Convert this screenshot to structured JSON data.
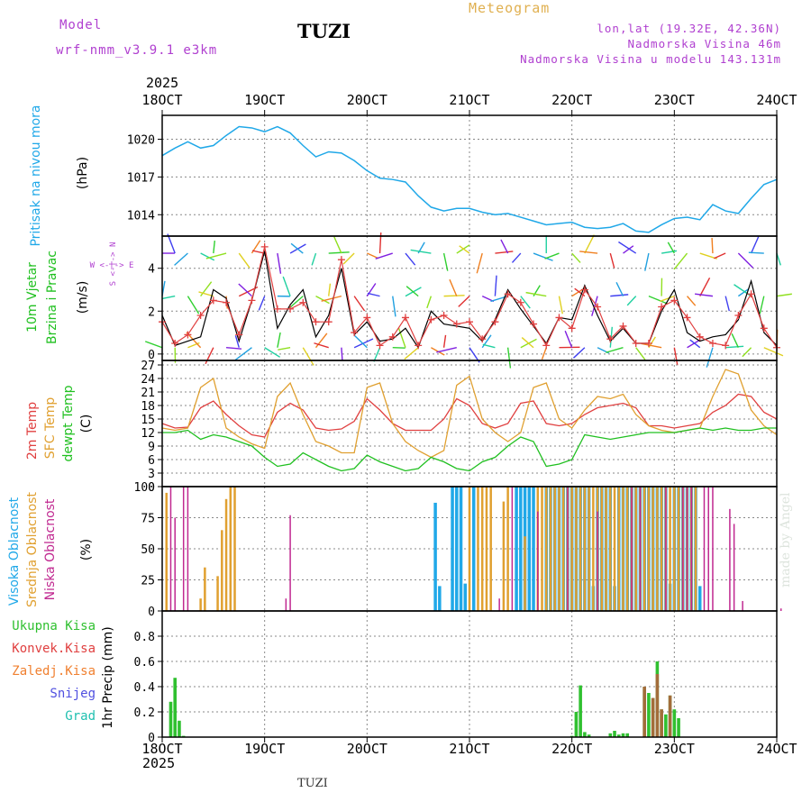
{
  "header": {
    "model_label": "Model",
    "model_version": "wrf-nmm_v3.9.1 e3km",
    "station": "TUZI",
    "title": "Meteogram",
    "lonlat": "lon,lat (19.32E, 42.36N)",
    "altitude": "Nadmorska Visina 46m",
    "model_altitude": "Nadmorska Visina u modelu 143.131m"
  },
  "footer": {
    "year": "2025",
    "station": "TUZI",
    "credit": "made by Angel"
  },
  "colors": {
    "pressure": "#20a8e8",
    "wind_speed": "#000000",
    "gust": "#e04040",
    "t2m": "#e04040",
    "sfc": "#e0a030",
    "dew": "#20c020",
    "high_cloud": "#20a8e8",
    "mid_cloud": "#e0a030",
    "low_cloud": "#c02890",
    "precip": "#30c030",
    "conv": "#e04040",
    "grid": "#888888"
  },
  "chart_data": [
    {
      "type": "line",
      "title": "Pritisak na nivou mora",
      "ylabel": "(hPa)",
      "x_tick_labels": [
        "18OCT",
        "19OCT",
        "20OCT",
        "21OCT",
        "22OCT",
        "23OCT",
        "24OCT"
      ],
      "xlim": [
        0,
        144
      ],
      "ylim": [
        1012.3,
        1021.9
      ],
      "yticks": [
        1014,
        1017,
        1020
      ],
      "series": [
        {
          "name": "pressure",
          "x": [
            0,
            3,
            6,
            9,
            12,
            15,
            18,
            21,
            24,
            27,
            30,
            33,
            36,
            39,
            42,
            45,
            48,
            51,
            54,
            57,
            60,
            63,
            66,
            69,
            72,
            75,
            78,
            81,
            84,
            87,
            90,
            93,
            96,
            99,
            102,
            105,
            108,
            111,
            114,
            117,
            120,
            123,
            126,
            129,
            132,
            135,
            138,
            141,
            144
          ],
          "y": [
            1018.7,
            1019.3,
            1019.8,
            1019.3,
            1019.5,
            1020.3,
            1021.0,
            1020.9,
            1020.6,
            1021.0,
            1020.5,
            1019.5,
            1018.6,
            1019.0,
            1018.9,
            1018.3,
            1017.5,
            1016.9,
            1016.8,
            1016.6,
            1015.5,
            1014.6,
            1014.3,
            1014.5,
            1014.5,
            1014.2,
            1014.0,
            1014.1,
            1013.8,
            1013.5,
            1013.2,
            1013.3,
            1013.4,
            1013.0,
            1012.9,
            1013.0,
            1013.3,
            1012.7,
            1012.6,
            1013.2,
            1013.7,
            1013.8,
            1013.6,
            1014.8,
            1014.3,
            1014.1,
            1015.3,
            1016.4,
            1016.8
          ]
        }
      ]
    },
    {
      "type": "line",
      "title": "10m Vjetar Brzina i Pravac",
      "ylabel": "(m/s)",
      "ylim": [
        -0.3,
        5.5
      ],
      "yticks": [
        0,
        2,
        4
      ],
      "series": [
        {
          "name": "wind_speed",
          "x": [
            0,
            3,
            6,
            9,
            12,
            15,
            18,
            21,
            24,
            27,
            30,
            33,
            36,
            39,
            42,
            45,
            48,
            51,
            54,
            57,
            60,
            63,
            66,
            69,
            72,
            75,
            78,
            81,
            84,
            87,
            90,
            93,
            96,
            99,
            102,
            105,
            108,
            111,
            114,
            117,
            120,
            123,
            126,
            129,
            132,
            135,
            138,
            141,
            144
          ],
          "y": [
            1.8,
            0.4,
            0.6,
            0.8,
            3.0,
            2.6,
            0.6,
            2.5,
            4.8,
            1.2,
            2.3,
            3.0,
            0.8,
            1.8,
            4.0,
            0.9,
            1.5,
            0.6,
            0.7,
            1.2,
            0.3,
            2.0,
            1.4,
            1.3,
            1.2,
            0.6,
            1.6,
            3.0,
            2.1,
            1.3,
            0.5,
            1.7,
            1.6,
            3.2,
            1.8,
            0.6,
            1.2,
            0.5,
            0.5,
            2.0,
            3.0,
            1.0,
            0.6,
            0.8,
            0.9,
            1.6,
            3.4,
            1.0,
            0.4
          ]
        },
        {
          "name": "gust",
          "x": [
            0,
            3,
            6,
            9,
            12,
            15,
            18,
            21,
            24,
            27,
            30,
            33,
            36,
            39,
            42,
            45,
            48,
            51,
            54,
            57,
            60,
            63,
            66,
            69,
            72,
            75,
            78,
            81,
            84,
            87,
            90,
            93,
            96,
            99,
            102,
            105,
            108,
            111,
            114,
            117,
            120,
            123,
            126,
            129,
            132,
            135,
            138,
            141,
            144
          ],
          "y": [
            1.5,
            0.5,
            0.9,
            1.8,
            2.5,
            2.4,
            0.9,
            2.5,
            5.0,
            2.1,
            2.1,
            2.4,
            1.5,
            1.5,
            4.4,
            1.0,
            1.7,
            0.4,
            0.8,
            1.7,
            0.4,
            1.6,
            1.8,
            1.4,
            1.5,
            0.7,
            1.5,
            2.8,
            2.4,
            1.4,
            0.4,
            1.7,
            1.2,
            3.0,
            2.2,
            0.7,
            1.3,
            0.5,
            0.5,
            2.2,
            2.5,
            1.7,
            0.8,
            0.5,
            0.4,
            1.8,
            2.8,
            1.2,
            0.3
          ]
        }
      ]
    },
    {
      "type": "line",
      "title": "2m Temp / SFC Temp / dewpt Temp",
      "ylabel": "(C)",
      "ylim": [
        0,
        28
      ],
      "yticks": [
        0,
        3,
        6,
        9,
        12,
        15,
        18,
        21,
        24,
        27
      ],
      "series": [
        {
          "name": "2m Temp",
          "x": [
            0,
            3,
            6,
            9,
            12,
            15,
            18,
            21,
            24,
            27,
            30,
            33,
            36,
            39,
            42,
            45,
            48,
            51,
            54,
            57,
            60,
            63,
            66,
            69,
            72,
            75,
            78,
            81,
            84,
            87,
            90,
            93,
            96,
            99,
            102,
            105,
            108,
            111,
            114,
            117,
            120,
            123,
            126,
            129,
            132,
            135,
            138,
            141,
            144
          ],
          "y": [
            14.0,
            13.0,
            13.2,
            17.5,
            19.0,
            16.0,
            13.5,
            11.5,
            11.0,
            16.5,
            18.5,
            17.0,
            13.0,
            12.5,
            12.8,
            14.5,
            19.5,
            17.0,
            14.0,
            12.5,
            12.5,
            12.5,
            15.0,
            19.5,
            18.0,
            14.0,
            13.0,
            14.0,
            18.5,
            19.0,
            14.0,
            13.5,
            14.0,
            16.0,
            17.5,
            18.0,
            18.5,
            17.5,
            13.5,
            13.5,
            13.0,
            13.5,
            14.0,
            16.5,
            18.0,
            20.5,
            20.0,
            16.5,
            15.0
          ]
        },
        {
          "name": "SFC Temp",
          "x": [
            0,
            3,
            6,
            9,
            12,
            15,
            18,
            21,
            24,
            27,
            30,
            33,
            36,
            39,
            42,
            45,
            48,
            51,
            54,
            57,
            60,
            63,
            66,
            69,
            72,
            75,
            78,
            81,
            84,
            87,
            90,
            93,
            96,
            99,
            102,
            105,
            108,
            111,
            114,
            117,
            120,
            123,
            126,
            129,
            132,
            135,
            138,
            141,
            144
          ],
          "y": [
            13.0,
            12.5,
            13.0,
            22.0,
            24.0,
            13.0,
            11.0,
            9.5,
            8.5,
            20.0,
            23.0,
            16.0,
            10.0,
            9.0,
            7.5,
            7.5,
            22.0,
            23.0,
            14.0,
            10.0,
            8.0,
            6.5,
            8.0,
            22.5,
            24.5,
            15.0,
            12.0,
            10.0,
            12.0,
            22.0,
            23.0,
            15.0,
            13.0,
            17.0,
            20.0,
            19.5,
            20.5,
            16.0,
            13.5,
            12.5,
            12.0,
            12.5,
            13.0,
            20.0,
            26.0,
            25.0,
            17.0,
            13.5,
            11.5
          ]
        },
        {
          "name": "dewpt Temp",
          "x": [
            0,
            3,
            6,
            9,
            12,
            15,
            18,
            21,
            24,
            27,
            30,
            33,
            36,
            39,
            42,
            45,
            48,
            51,
            54,
            57,
            60,
            63,
            66,
            69,
            72,
            75,
            78,
            81,
            84,
            87,
            90,
            93,
            96,
            99,
            102,
            105,
            108,
            111,
            114,
            117,
            120,
            123,
            126,
            129,
            132,
            135,
            138,
            141,
            144
          ],
          "y": [
            12.0,
            12.0,
            12.5,
            10.5,
            11.5,
            11.0,
            10.0,
            9.0,
            6.5,
            4.5,
            5.0,
            7.5,
            6.0,
            4.5,
            3.5,
            4.0,
            7.0,
            5.5,
            4.5,
            3.5,
            4.0,
            6.5,
            5.5,
            4.0,
            3.5,
            5.5,
            6.5,
            9.0,
            11.0,
            10.0,
            4.5,
            5.0,
            6.0,
            11.5,
            11.0,
            10.5,
            11.0,
            11.5,
            12.0,
            12.0,
            12.0,
            12.5,
            13.0,
            12.5,
            13.0,
            12.5,
            12.5,
            13.0,
            13.0
          ]
        }
      ]
    },
    {
      "type": "bar",
      "title": "Visoka Oblacnost / Srednja Oblacnost / Niska Oblacnost",
      "ylabel": "(%)",
      "ylim": [
        0,
        100
      ],
      "yticks": [
        0,
        25,
        50,
        75,
        100
      ],
      "series": [
        {
          "name": "Visoka Oblacnost",
          "x": [
            64,
            65,
            68,
            69,
            70,
            71,
            73,
            83,
            84,
            85,
            86,
            87,
            90,
            91,
            92,
            93,
            94,
            95,
            96,
            97,
            98,
            99,
            100,
            101,
            102,
            103,
            104,
            105,
            106,
            107,
            108,
            109,
            110,
            111,
            112,
            113,
            114,
            115,
            116,
            117,
            118,
            119,
            120,
            121,
            122,
            123,
            124,
            125,
            126
          ],
          "values": [
            87,
            20,
            100,
            100,
            100,
            22,
            100,
            100,
            100,
            100,
            100,
            100,
            100,
            100,
            100,
            100,
            100,
            100,
            100,
            100,
            100,
            100,
            100,
            20,
            100,
            100,
            100,
            100,
            20,
            100,
            100,
            100,
            100,
            100,
            100,
            100,
            100,
            100,
            100,
            100,
            100,
            22,
            100,
            100,
            100,
            100,
            100,
            100,
            20
          ]
        },
        {
          "name": "Srednja Oblacnost",
          "x": [
            1,
            9,
            10,
            13,
            14,
            15,
            16,
            17,
            72,
            74,
            75,
            76,
            77,
            80,
            81,
            85,
            88,
            89,
            90,
            91,
            92,
            93,
            94,
            95,
            96,
            97,
            98,
            99,
            100,
            101,
            102,
            103,
            104,
            105,
            106,
            107,
            108,
            109,
            110,
            111,
            112,
            113,
            114,
            115,
            116,
            117,
            118,
            119,
            120,
            121,
            122,
            123,
            124,
            125
          ],
          "values": [
            95,
            10,
            35,
            28,
            65,
            90,
            100,
            100,
            100,
            100,
            100,
            100,
            100,
            88,
            100,
            60,
            100,
            100,
            100,
            100,
            100,
            100,
            100,
            100,
            100,
            100,
            100,
            100,
            100,
            100,
            100,
            100,
            100,
            100,
            100,
            100,
            100,
            100,
            100,
            100,
            100,
            100,
            100,
            100,
            100,
            100,
            100,
            100,
            100,
            100,
            100,
            100,
            100,
            100
          ]
        },
        {
          "name": "Niska Oblacnost",
          "x": [
            2,
            3,
            5,
            6,
            29,
            30,
            79,
            82,
            88,
            95,
            102,
            110,
            112,
            118,
            122,
            123,
            124,
            127,
            128,
            129,
            133,
            134,
            136,
            145
          ],
          "values": [
            100,
            75,
            100,
            100,
            10,
            77,
            10,
            100,
            80,
            100,
            80,
            100,
            100,
            100,
            100,
            100,
            100,
            100,
            100,
            100,
            82,
            70,
            8,
            2
          ]
        }
      ]
    },
    {
      "type": "bar",
      "title": "1hr Precip",
      "ylabel": "(mm)",
      "ylim": [
        0,
        1.0
      ],
      "yticks": [
        0,
        0.2,
        0.4,
        0.6,
        0.8
      ],
      "legend": [
        "Ukupna Kisa",
        "Konvek.Kisa",
        "Zaledj.Kisa",
        "Snijeg",
        "Grad"
      ],
      "series": [
        {
          "name": "Ukupna Kisa",
          "x": [
            2,
            3,
            4,
            5,
            96,
            97,
            98,
            99,
            100,
            105,
            106,
            107,
            108,
            109,
            113,
            114,
            115,
            116,
            117,
            118,
            119,
            120,
            121
          ],
          "values": [
            0.28,
            0.47,
            0.13,
            0.01,
            0.01,
            0.2,
            0.41,
            0.04,
            0.02,
            0.03,
            0.05,
            0.02,
            0.03,
            0.03,
            0.4,
            0.35,
            0.31,
            0.6,
            0.22,
            0.18,
            0.33,
            0.22,
            0.15
          ]
        },
        {
          "name": "Konvek.Kisa",
          "x": [
            113,
            115,
            116,
            117,
            119
          ],
          "values": [
            0.4,
            0.31,
            0.5,
            0.22,
            0.33
          ]
        }
      ]
    }
  ]
}
